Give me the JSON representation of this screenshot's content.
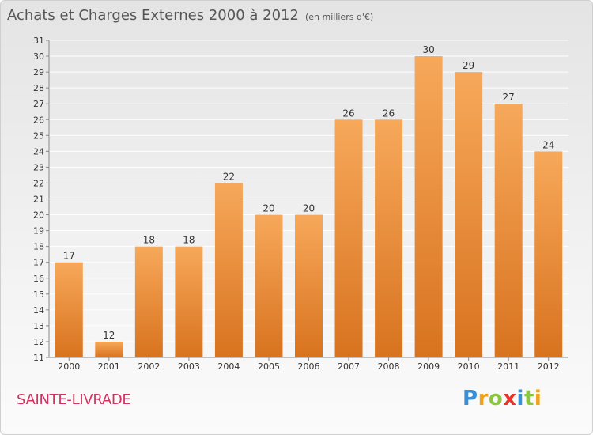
{
  "header": {
    "title": "Achats et Charges Externes 2000 à 2012",
    "unit": "(en milliers d'€)"
  },
  "location": {
    "name": "SAINTE-LIVRADE"
  },
  "brand": {
    "letters": [
      "P",
      "r",
      "o",
      "x",
      "i",
      "t",
      "i"
    ]
  },
  "colors": {
    "bar_top": "#f7a85a",
    "bar_bottom": "#d8731f",
    "commune_text": "#d2325f",
    "grid": "#ffffff",
    "axis_text": "#333333"
  },
  "chart_data": {
    "type": "bar",
    "title": "Achats et Charges Externes 2000 à 2012",
    "subtitle": "(en milliers d'€)",
    "xlabel": "",
    "ylabel": "",
    "categories": [
      "2000",
      "2001",
      "2002",
      "2003",
      "2004",
      "2005",
      "2006",
      "2007",
      "2008",
      "2009",
      "2010",
      "2011",
      "2012"
    ],
    "values": [
      17,
      12,
      18,
      18,
      22,
      20,
      20,
      26,
      26,
      30,
      29,
      27,
      24
    ],
    "ylim": [
      11,
      31
    ],
    "yticks": [
      11,
      12,
      13,
      14,
      15,
      16,
      17,
      18,
      19,
      20,
      21,
      22,
      23,
      24,
      25,
      26,
      27,
      28,
      29,
      30,
      31
    ],
    "grid": true,
    "data_labels": true
  }
}
